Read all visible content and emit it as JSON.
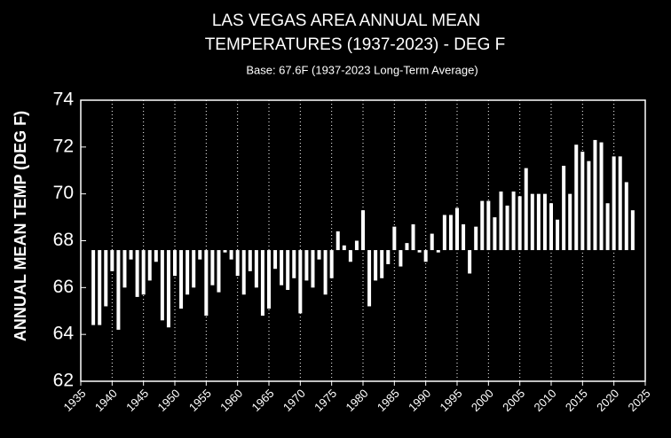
{
  "chart_data": {
    "type": "bar",
    "title": [
      "LAS VEGAS AREA ANNUAL MEAN",
      "TEMPERATURES (1937-2023) - DEG F"
    ],
    "subtitle": "Base: 67.6F (1937-2023 Long-Term Average)",
    "ylabel": "ANNUAL MEAN TEMP (DEG F)",
    "base": 67.6,
    "color": "#ffffff",
    "grid": true,
    "xlim": [
      1935,
      2025
    ],
    "xticks": [
      1935,
      1940,
      1945,
      1950,
      1955,
      1960,
      1965,
      1970,
      1975,
      1980,
      1985,
      1990,
      1995,
      2000,
      2005,
      2010,
      2015,
      2020,
      2025
    ],
    "ylim": [
      62,
      74
    ],
    "yticks": [
      62,
      64,
      66,
      68,
      70,
      72,
      74
    ],
    "x": [
      1937,
      1938,
      1939,
      1940,
      1941,
      1942,
      1943,
      1944,
      1945,
      1946,
      1947,
      1948,
      1949,
      1950,
      1951,
      1952,
      1953,
      1954,
      1955,
      1956,
      1957,
      1958,
      1959,
      1960,
      1961,
      1962,
      1963,
      1964,
      1965,
      1966,
      1967,
      1968,
      1969,
      1970,
      1971,
      1972,
      1973,
      1974,
      1975,
      1976,
      1977,
      1978,
      1979,
      1980,
      1981,
      1982,
      1983,
      1984,
      1985,
      1986,
      1987,
      1988,
      1989,
      1990,
      1991,
      1992,
      1993,
      1994,
      1995,
      1996,
      1997,
      1998,
      1999,
      2000,
      2001,
      2002,
      2003,
      2004,
      2005,
      2006,
      2007,
      2008,
      2009,
      2010,
      2011,
      2012,
      2013,
      2014,
      2015,
      2016,
      2017,
      2018,
      2019,
      2020,
      2021,
      2022,
      2023
    ],
    "values": [
      64.4,
      64.4,
      65.2,
      66.7,
      64.2,
      66.0,
      67.2,
      65.6,
      65.7,
      66.3,
      67.1,
      64.6,
      64.3,
      66.5,
      65.1,
      65.7,
      66.0,
      67.2,
      64.8,
      66.1,
      65.8,
      67.5,
      67.2,
      66.5,
      65.7,
      66.7,
      66.0,
      64.8,
      65.1,
      66.8,
      66.1,
      65.9,
      66.4,
      64.9,
      66.3,
      66.0,
      67.2,
      65.7,
      66.4,
      68.4,
      67.8,
      67.1,
      68.0,
      69.3,
      65.2,
      66.3,
      66.4,
      67.0,
      68.6,
      66.9,
      67.9,
      68.7,
      67.5,
      67.1,
      68.3,
      67.5,
      69.1,
      69.1,
      69.4,
      68.7,
      66.6,
      68.6,
      69.7,
      69.7,
      69.0,
      70.1,
      69.5,
      70.1,
      69.9,
      71.1,
      70.0,
      70.0,
      70.0,
      69.6,
      68.9,
      71.2,
      70.0,
      72.1,
      71.8,
      71.4,
      72.3,
      72.2,
      69.6,
      71.6,
      71.6,
      70.5,
      69.3
    ]
  }
}
